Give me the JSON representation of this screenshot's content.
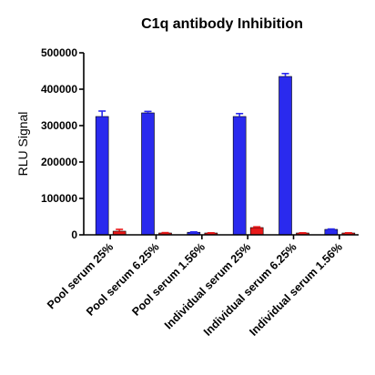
{
  "chart_data": {
    "type": "bar",
    "title": "C1q antibody Inhibition",
    "xlabel": "",
    "ylabel": "RLU Signal",
    "ylim": [
      0,
      500000
    ],
    "yticks": [
      0,
      100000,
      200000,
      300000,
      400000,
      500000
    ],
    "ytick_labels": [
      "0",
      "100000",
      "200000",
      "300000",
      "400000",
      "500000"
    ],
    "categories": [
      "Pool serum 25%",
      "Pool serum 6.25%",
      "Pool serum 1.56%",
      "Individual serum 25%",
      "Individual serum 6.25%",
      "Individual serum 1.56%"
    ],
    "series": [
      {
        "color": "#2a2aee",
        "values": [
          325000,
          335000,
          7000,
          325000,
          435000,
          15000
        ],
        "errors": [
          15000,
          4000,
          1000,
          8000,
          8000,
          1000
        ]
      },
      {
        "color": "#e8191a",
        "values": [
          10000,
          5000,
          5000,
          20000,
          5000,
          5000
        ],
        "errors": [
          5000,
          1000,
          500,
          2000,
          500,
          500
        ]
      }
    ],
    "grid": false,
    "legend": "none"
  }
}
